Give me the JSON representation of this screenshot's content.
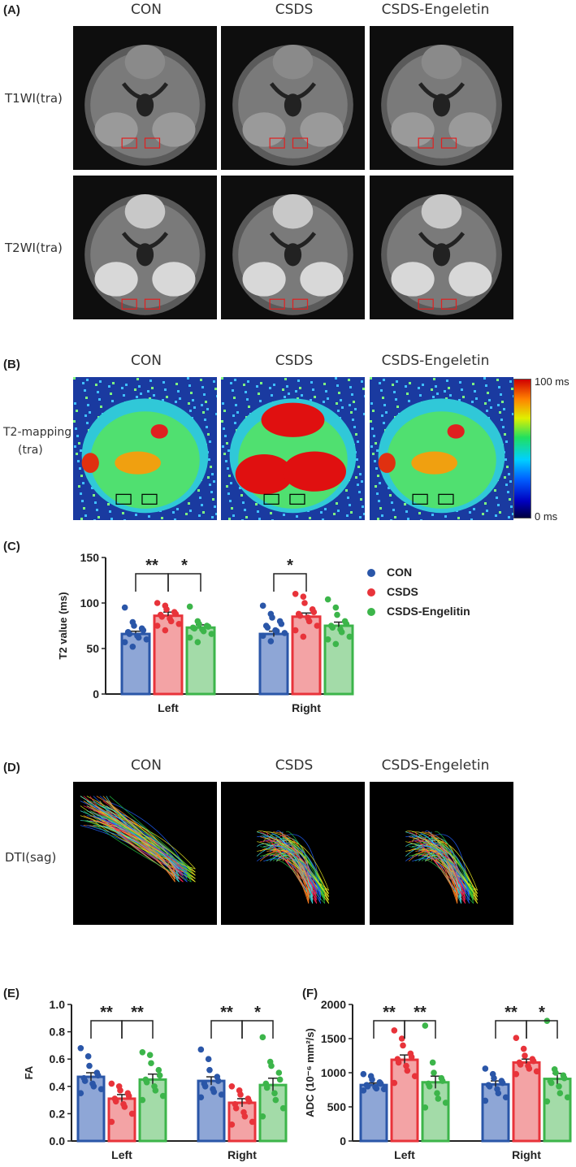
{
  "panels": {
    "A": {
      "letter": "(A)",
      "columns": [
        "CON",
        "CSDS",
        "CSDS-Engeletin"
      ],
      "rows": [
        "T1WI(tra)",
        "T2WI(tra)"
      ]
    },
    "B": {
      "letter": "(B)",
      "columns": [
        "CON",
        "CSDS",
        "CSDS-Engeletin"
      ],
      "row_label_1": "T2-mapping",
      "row_label_2": "(tra)",
      "colorbar_max": "100 ms",
      "colorbar_min": "0 ms"
    },
    "C": {
      "letter": "(C)"
    },
    "D": {
      "letter": "(D)",
      "columns": [
        "CON",
        "CSDS",
        "CSDS-Engeletin"
      ],
      "row_label": "DTI(sag)"
    },
    "E": {
      "letter": "(E)"
    },
    "F": {
      "letter": "(F)"
    }
  },
  "legend": [
    {
      "label": "CON",
      "color": "#2a56a8"
    },
    {
      "label": "CSDS",
      "color": "#e8333a"
    },
    {
      "label": "CSDS-Engelitin",
      "color": "#3cb54a"
    }
  ],
  "colors": {
    "con": "#2a56a8",
    "csds": "#e8333a",
    "eng": "#3cb54a",
    "con_fill": "#8ea6d6",
    "csds_fill": "#f3a3a5",
    "eng_fill": "#a3dba8"
  },
  "chart_data": [
    {
      "id": "C",
      "type": "bar",
      "ylabel": "T2 value (ms)",
      "ylim": [
        0,
        150
      ],
      "yticks": [
        "0",
        "50",
        "100",
        "150"
      ],
      "categories": [
        "Left",
        "Right"
      ],
      "series": [
        {
          "name": "CON",
          "values": [
            66,
            66
          ],
          "err": [
            3,
            3
          ]
        },
        {
          "name": "CSDS",
          "values": [
            86,
            85
          ],
          "err": [
            4,
            4
          ]
        },
        {
          "name": "CSDS-Engelitin",
          "values": [
            73,
            75
          ],
          "err": [
            3,
            4
          ]
        }
      ],
      "points": [
        [
          [
            95,
            79,
            75,
            72,
            70,
            68,
            66,
            64,
            62,
            60,
            57,
            52
          ],
          [
            97,
            88,
            84,
            80,
            77,
            75,
            73,
            70,
            69,
            67,
            64,
            58
          ]
        ],
        [
          [
            100,
            97,
            93,
            90,
            88,
            87,
            85,
            83,
            80,
            77,
            75,
            70
          ],
          [
            110,
            107,
            100,
            93,
            90,
            88,
            86,
            84,
            80,
            75,
            70,
            63
          ]
        ],
        [
          [
            96,
            80,
            77,
            75,
            74,
            73,
            72,
            71,
            69,
            66,
            62,
            57
          ],
          [
            104,
            95,
            87,
            80,
            77,
            75,
            73,
            71,
            68,
            63,
            60,
            55
          ]
        ]
      ],
      "significance": [
        {
          "group": 0,
          "from": 0,
          "to": 1,
          "label": "**"
        },
        {
          "group": 0,
          "from": 1,
          "to": 2,
          "label": "*"
        },
        {
          "group": 1,
          "from": 0,
          "to": 1,
          "label": "*"
        }
      ]
    },
    {
      "id": "E",
      "type": "bar",
      "ylabel": "FA",
      "ylim": [
        0,
        1.0
      ],
      "yticks": [
        "0.0",
        "0.2",
        "0.4",
        "0.6",
        "0.8",
        "1.0"
      ],
      "categories": [
        "Left",
        "Right"
      ],
      "series": [
        {
          "name": "CON",
          "values": [
            0.47,
            0.44
          ],
          "err": [
            0.03,
            0.03
          ]
        },
        {
          "name": "CSDS",
          "values": [
            0.31,
            0.28
          ],
          "err": [
            0.03,
            0.03
          ]
        },
        {
          "name": "CSDS-Engelitin",
          "values": [
            0.45,
            0.41
          ],
          "err": [
            0.04,
            0.05
          ]
        }
      ],
      "points": [
        [
          [
            0.68,
            0.62,
            0.55,
            0.5,
            0.48,
            0.46,
            0.44,
            0.42,
            0.4,
            0.38,
            0.35
          ],
          [
            0.67,
            0.6,
            0.52,
            0.47,
            0.44,
            0.42,
            0.4,
            0.38,
            0.36,
            0.34,
            0.32
          ]
        ],
        [
          [
            0.42,
            0.4,
            0.37,
            0.35,
            0.33,
            0.31,
            0.29,
            0.27,
            0.25,
            0.2,
            0.14
          ],
          [
            0.4,
            0.37,
            0.34,
            0.31,
            0.29,
            0.27,
            0.24,
            0.21,
            0.18,
            0.14,
            0.12
          ]
        ],
        [
          [
            0.65,
            0.63,
            0.57,
            0.52,
            0.48,
            0.45,
            0.43,
            0.4,
            0.37,
            0.33,
            0.3
          ],
          [
            0.76,
            0.58,
            0.55,
            0.5,
            0.45,
            0.42,
            0.39,
            0.35,
            0.3,
            0.24,
            0.18
          ]
        ]
      ],
      "significance": [
        {
          "group": 0,
          "from": 0,
          "to": 1,
          "label": "**"
        },
        {
          "group": 0,
          "from": 1,
          "to": 2,
          "label": "**"
        },
        {
          "group": 1,
          "from": 0,
          "to": 1,
          "label": "**"
        },
        {
          "group": 1,
          "from": 1,
          "to": 2,
          "label": "*"
        }
      ]
    },
    {
      "id": "F",
      "type": "bar",
      "ylabel": "ADC (10⁻⁶ mm²/s)",
      "ylim": [
        0,
        2000
      ],
      "yticks": [
        "0",
        "500",
        "1000",
        "1500",
        "2000"
      ],
      "categories": [
        "Left",
        "Right"
      ],
      "series": [
        {
          "name": "CON",
          "values": [
            820,
            830
          ],
          "err": [
            30,
            50
          ]
        },
        {
          "name": "CSDS",
          "values": [
            1190,
            1150
          ],
          "err": [
            70,
            50
          ]
        },
        {
          "name": "CSDS-Engelitin",
          "values": [
            860,
            910
          ],
          "err": [
            90,
            80
          ]
        }
      ],
      "points": [
        [
          [
            980,
            950,
            900,
            860,
            840,
            820,
            800,
            790,
            770,
            760,
            740
          ],
          [
            1060,
            980,
            920,
            880,
            850,
            820,
            800,
            760,
            700,
            640,
            590
          ]
        ],
        [
          [
            1620,
            1500,
            1400,
            1280,
            1230,
            1200,
            1150,
            1100,
            1030,
            950,
            850
          ],
          [
            1510,
            1350,
            1250,
            1200,
            1170,
            1150,
            1120,
            1100,
            1060,
            1020,
            980
          ]
        ],
        [
          [
            1690,
            1150,
            1000,
            920,
            880,
            840,
            800,
            700,
            620,
            560,
            490
          ],
          [
            1760,
            1050,
            1000,
            960,
            920,
            880,
            850,
            800,
            700,
            640,
            580
          ]
        ]
      ],
      "significance": [
        {
          "group": 0,
          "from": 0,
          "to": 1,
          "label": "**"
        },
        {
          "group": 0,
          "from": 1,
          "to": 2,
          "label": "**"
        },
        {
          "group": 1,
          "from": 0,
          "to": 1,
          "label": "**"
        },
        {
          "group": 1,
          "from": 1,
          "to": 2,
          "label": "*"
        }
      ]
    }
  ]
}
